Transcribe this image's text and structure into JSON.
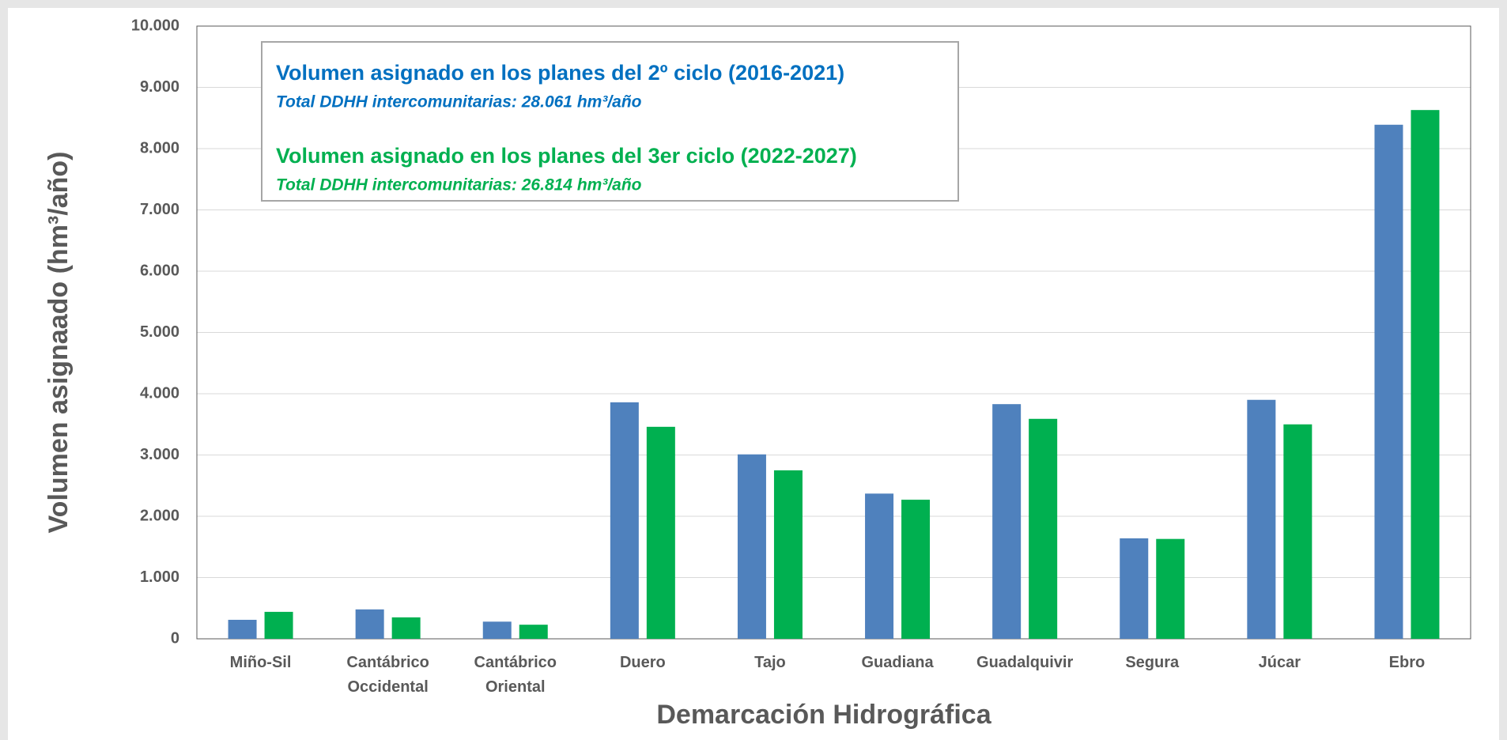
{
  "chart_data": {
    "type": "bar",
    "x_label": "Demarcación Hidrográfica",
    "y_label": "Volumen asignaado (hm³/año)",
    "categories": [
      "Miño-Sil",
      "Cantábrico Occidental",
      "Cantábrico Oriental",
      "Duero",
      "Tajo",
      "Guadiana",
      "Guadalquivir",
      "Segura",
      "Júcar",
      "Ebro"
    ],
    "series": [
      {
        "name": "Volumen asignado en los planes del 2º ciclo (2016-2021)",
        "note": "Total DDHH intercomunitarias: 28.061 hm³/año",
        "color": "#4f81bd",
        "values": [
          310,
          480,
          280,
          3860,
          3010,
          2370,
          3830,
          1640,
          3900,
          8390
        ]
      },
      {
        "name": "Volumen asignado en los planes del 3er ciclo (2022-2027)",
        "note": "Total DDHH intercomunitarias: 26.814 hm³/año",
        "color": "#00b050",
        "values": [
          440,
          350,
          230,
          3460,
          2750,
          2270,
          3590,
          1630,
          3500,
          8630
        ]
      }
    ],
    "legend_colors": [
      "#0070c0",
      "#00b050"
    ],
    "ylim": [
      0,
      10000
    ],
    "yticks": [
      0,
      {
        "value": 1000,
        "label": "1.000"
      },
      {
        "value": 2000,
        "label": "2.000"
      },
      {
        "value": 3000,
        "label": "3.000"
      },
      {
        "value": 4000,
        "label": "4.000"
      },
      {
        "value": 5000,
        "label": "5.000"
      },
      {
        "value": 6000,
        "label": "6.000"
      },
      {
        "value": 7000,
        "label": "7.000"
      },
      {
        "value": 8000,
        "label": "8.000"
      },
      {
        "value": 9000,
        "label": "9.000"
      },
      {
        "value": 10000,
        "label": "10.000"
      }
    ],
    "grid": true
  }
}
